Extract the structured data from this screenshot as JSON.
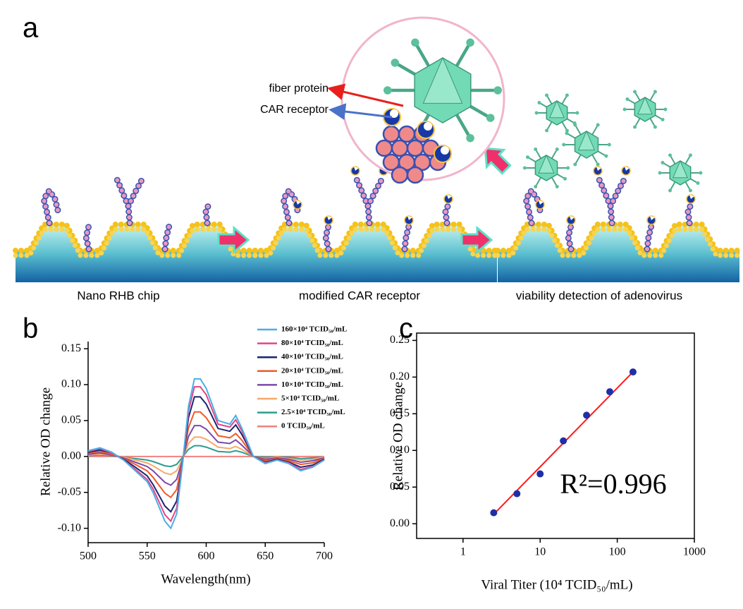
{
  "panel_a": {
    "label": "a",
    "callouts": [
      "fiber protein",
      "CAR receptor"
    ],
    "captions": [
      "Nano RHB chip",
      "modified CAR receptor",
      "viability detection of adenovirus"
    ]
  },
  "chart_data": [
    {
      "type": "line",
      "label": "b",
      "xlabel": "Wavelength(nm)",
      "ylabel": "Relative OD change",
      "x": [
        500,
        510,
        520,
        530,
        540,
        550,
        555,
        560,
        565,
        570,
        575,
        580,
        585,
        590,
        595,
        600,
        610,
        620,
        625,
        630,
        640,
        650,
        660,
        670,
        680,
        690,
        700
      ],
      "xlim": [
        500,
        700
      ],
      "xticks": [
        500,
        550,
        600,
        650,
        700
      ],
      "ylim": [
        -0.12,
        0.16
      ],
      "yticks": [
        {
          "value": -0.1,
          "label": "-0.10"
        },
        {
          "value": -0.05,
          "label": "-0.05"
        },
        {
          "value": 0,
          "label": "0.00"
        },
        {
          "value": 0.05,
          "label": "0.05"
        },
        {
          "value": 0.1,
          "label": "0.10"
        },
        {
          "value": 0.15,
          "label": "0.15"
        }
      ],
      "series": [
        {
          "name": "160×10⁴ TCID₅₀/mL",
          "color": "#4aaee6",
          "values": [
            0.008,
            0.012,
            0.006,
            -0.005,
            -0.02,
            -0.035,
            -0.05,
            -0.07,
            -0.09,
            -0.1,
            -0.08,
            -0.01,
            0.07,
            0.108,
            0.108,
            0.095,
            0.05,
            0.045,
            0.057,
            0.04,
            0,
            -0.01,
            -0.005,
            -0.01,
            -0.02,
            -0.015,
            -0.005
          ]
        },
        {
          "name": "80×10⁴ TCID₅₀/mL",
          "color": "#e0468a",
          "values": [
            0.007,
            0.011,
            0.005,
            -0.005,
            -0.018,
            -0.032,
            -0.045,
            -0.063,
            -0.081,
            -0.09,
            -0.072,
            -0.009,
            0.063,
            0.097,
            0.097,
            0.086,
            0.045,
            0.041,
            0.051,
            0.036,
            0,
            -0.009,
            -0.005,
            -0.009,
            -0.018,
            -0.014,
            -0.005
          ]
        },
        {
          "name": "40×10⁴ TCID₅₀/mL",
          "color": "#1c2472",
          "values": [
            0.006,
            0.009,
            0.005,
            -0.004,
            -0.015,
            -0.027,
            -0.039,
            -0.054,
            -0.069,
            -0.077,
            -0.062,
            -0.008,
            0.054,
            0.083,
            0.083,
            0.073,
            0.039,
            0.035,
            0.044,
            0.031,
            0,
            -0.008,
            -0.004,
            -0.008,
            -0.015,
            -0.012,
            -0.004
          ]
        },
        {
          "name": "20×10⁴ TCID₅₀/mL",
          "color": "#f05a28",
          "values": [
            0.005,
            0.007,
            0.003,
            -0.003,
            -0.011,
            -0.02,
            -0.029,
            -0.04,
            -0.051,
            -0.057,
            -0.046,
            -0.006,
            0.04,
            0.062,
            0.062,
            0.054,
            0.029,
            0.026,
            0.032,
            0.023,
            0,
            -0.006,
            -0.003,
            -0.006,
            -0.011,
            -0.009,
            -0.003
          ]
        },
        {
          "name": "10×10⁴ TCID₅₀/mL",
          "color": "#7b4aa8",
          "values": [
            0.003,
            0.005,
            0.002,
            -0.002,
            -0.008,
            -0.014,
            -0.02,
            -0.028,
            -0.036,
            -0.04,
            -0.032,
            -0.004,
            0.028,
            0.043,
            0.043,
            0.038,
            0.02,
            0.018,
            0.023,
            0.016,
            0,
            -0.004,
            -0.002,
            -0.004,
            -0.008,
            -0.006,
            -0.002
          ]
        },
        {
          "name": "5×10⁴ TCID₅₀/mL",
          "color": "#f6a96a",
          "values": [
            0.002,
            0.003,
            0.002,
            -0.001,
            -0.005,
            -0.009,
            -0.013,
            -0.018,
            -0.023,
            -0.025,
            -0.02,
            -0.003,
            0.018,
            0.027,
            0.027,
            0.024,
            0.013,
            0.011,
            0.014,
            0.01,
            0,
            -0.003,
            -0.001,
            -0.003,
            -0.005,
            -0.004,
            -0.001
          ]
        },
        {
          "name": "2.5×10⁴ TCID₅₀/mL",
          "color": "#2a9d8f",
          "values": [
            0.001,
            0.002,
            0.001,
            -0.001,
            -0.003,
            -0.005,
            -0.007,
            -0.01,
            -0.013,
            -0.014,
            -0.011,
            -0.001,
            0.01,
            0.015,
            0.015,
            0.013,
            0.007,
            0.006,
            0.008,
            0.006,
            0,
            -0.001,
            -0.001,
            -0.001,
            -0.003,
            -0.002,
            -0.001
          ]
        },
        {
          "name": "0  TCID₅₀/mL",
          "color": "#f28080",
          "values": [
            0,
            0,
            0,
            0,
            0,
            0,
            0,
            0,
            0,
            0,
            0,
            0,
            0,
            0,
            0,
            0,
            0,
            0,
            0,
            0,
            0,
            0,
            0,
            0,
            0,
            0,
            0
          ]
        }
      ]
    },
    {
      "type": "scatter",
      "label": "c",
      "xlabel": "Viral Titer (10⁴ TCID₅₀/mL)",
      "ylabel": "Relative OD change",
      "xscale": "log",
      "xlim": [
        0.25,
        1000
      ],
      "xticks": [
        1,
        10,
        100,
        1000
      ],
      "ylim": [
        -0.02,
        0.26
      ],
      "yticks": [
        {
          "value": 0,
          "label": "0.00"
        },
        {
          "value": 0.05,
          "label": "0.05"
        },
        {
          "value": 0.1,
          "label": "0.10"
        },
        {
          "value": 0.15,
          "label": "0.15"
        },
        {
          "value": 0.2,
          "label": "0.20"
        },
        {
          "value": 0.25,
          "label": "0.25"
        }
      ],
      "x": [
        2.5,
        5,
        10,
        20,
        40,
        80,
        160
      ],
      "series": [
        {
          "color": "#1f2fa8",
          "values": [
            0.015,
            0.041,
            0.068,
            0.113,
            0.148,
            0.18,
            0.207
          ]
        }
      ],
      "fit": {
        "color": "#ff1a1a",
        "x": [
          2.5,
          160
        ],
        "values": [
          0.013,
          0.207
        ]
      },
      "annotation": "R²=0.996"
    }
  ]
}
